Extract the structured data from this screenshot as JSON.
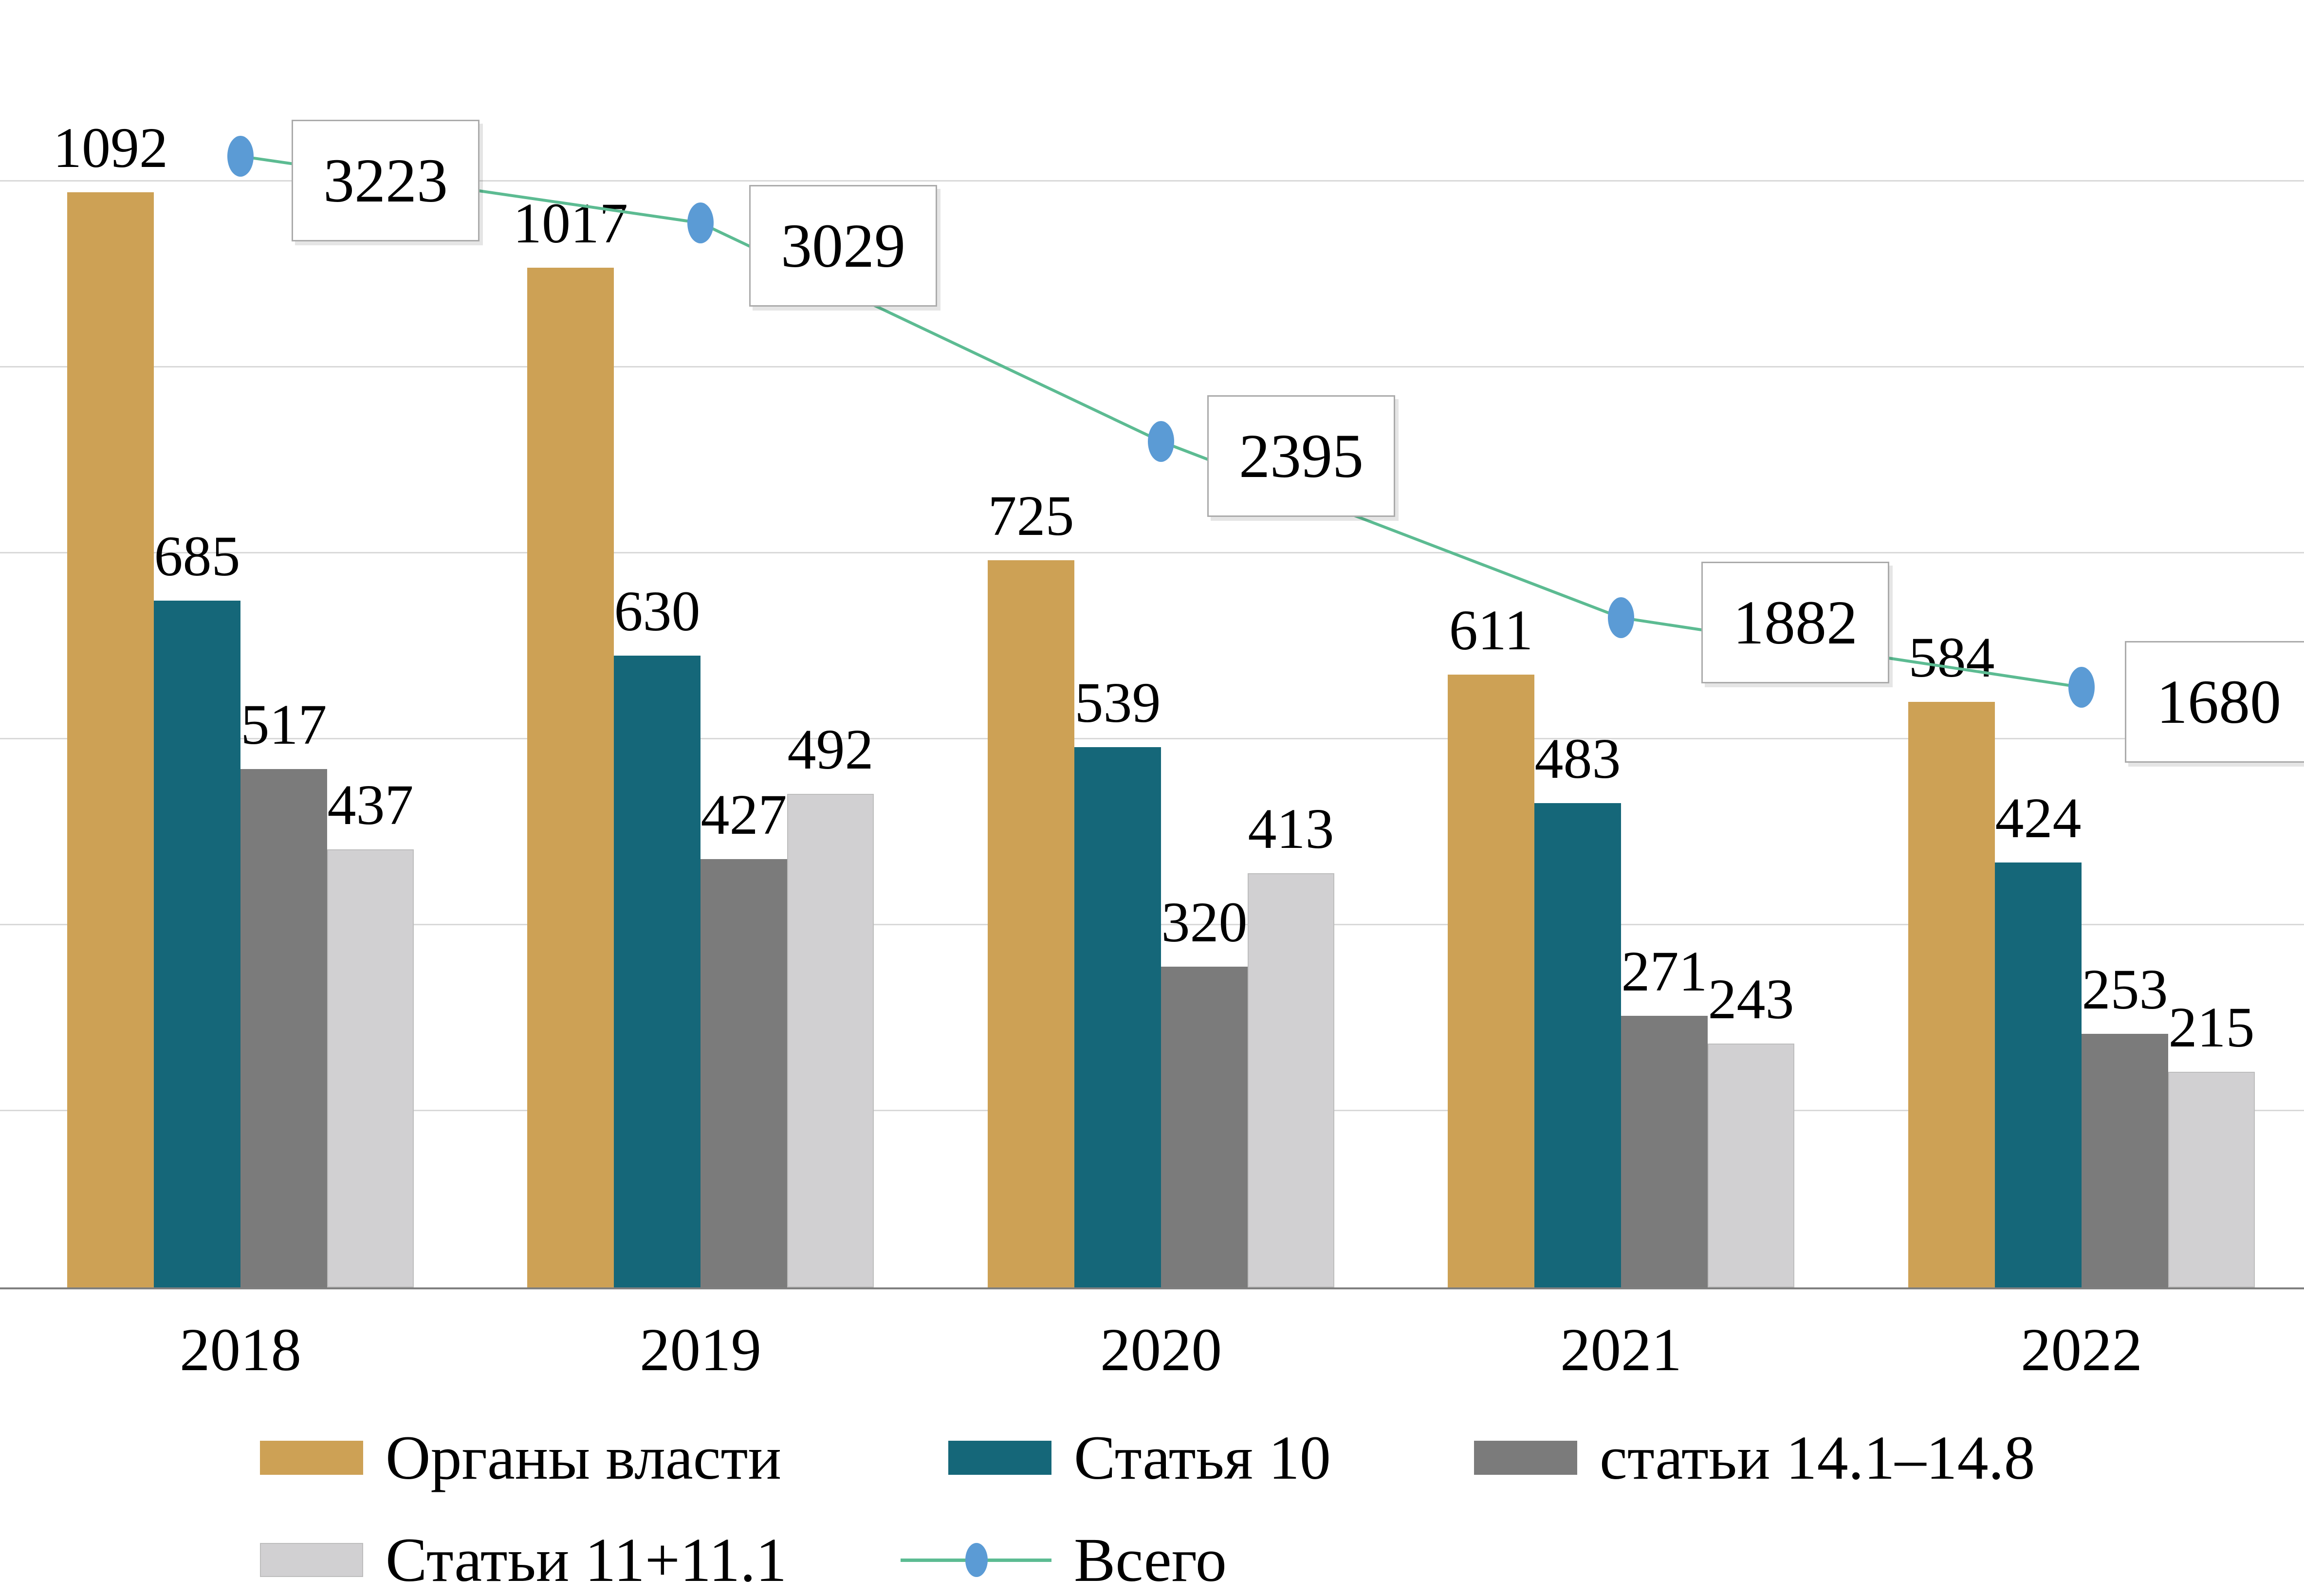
{
  "chart_data": {
    "type": "bar",
    "subtype": "grouped-bar-with-line-overlay",
    "title": "",
    "xlabel": "",
    "ylabel": "",
    "categories": [
      "2018",
      "2019",
      "2020",
      "2021",
      "2022"
    ],
    "series": [
      {
        "id": "organy-vlasti",
        "name": "Органы власти",
        "type": "bar",
        "color": "#CDA155",
        "values": [
          1092,
          1017,
          725,
          611,
          584
        ]
      },
      {
        "id": "statya-10",
        "name": "Статья 10",
        "type": "bar",
        "color": "#156779",
        "values": [
          685,
          630,
          539,
          483,
          424
        ]
      },
      {
        "id": "stati-14-1-14-8",
        "name": "статьи 14.1–14.8",
        "type": "bar",
        "color": "#7B7B7B",
        "values": [
          517,
          427,
          320,
          271,
          253
        ]
      },
      {
        "id": "stati-11-11-1",
        "name": "Статьи 11+11.1",
        "type": "bar",
        "color": "#D1D0D2",
        "border_color": "#BDBDBD",
        "values": [
          437,
          492,
          413,
          243,
          215
        ]
      },
      {
        "id": "vsego",
        "name": "Всего",
        "type": "line",
        "line_color": "#5CBB92",
        "marker_color": "#5B9BD5",
        "boxed_labels": true,
        "values": [
          3223,
          3029,
          2395,
          1882,
          1680
        ]
      }
    ],
    "data_labels_visible": true,
    "y_axis_tick_labels_visible": false,
    "grid": "horizontal-faint",
    "legend_position": "bottom",
    "primary_axis_range": [
      0,
      1200
    ],
    "secondary_axis_range": [
      0,
      3500
    ]
  },
  "colors": {
    "background": "#FFFFFF",
    "gridline": "#D9D9D9",
    "axis_line": "#7F7F7F",
    "callout_border": "#ABABAB",
    "callout_bg": "#FFFFFF",
    "text": "#000000",
    "bar_gold": "#CDA155",
    "bar_teal": "#156779",
    "bar_gray": "#7B7B7B",
    "bar_lightgray": "#D1D0D2",
    "line_green": "#5CBB92",
    "marker_blue": "#5B9BD5"
  },
  "legend": {
    "items": [
      {
        "id": "organy-vlasti",
        "label": "Органы власти",
        "swatch": "gold-rect"
      },
      {
        "id": "statya-10",
        "label": "Статья 10",
        "swatch": "teal-rect"
      },
      {
        "id": "stati-14-1-14-8",
        "label": "статьи 14.1–14.8",
        "swatch": "gray-rect"
      },
      {
        "id": "stati-11-11-1",
        "label": "Статьи 11+11.1",
        "swatch": "lightgray-rect"
      },
      {
        "id": "vsego",
        "label": "Всего",
        "swatch": "line-marker"
      }
    ]
  }
}
